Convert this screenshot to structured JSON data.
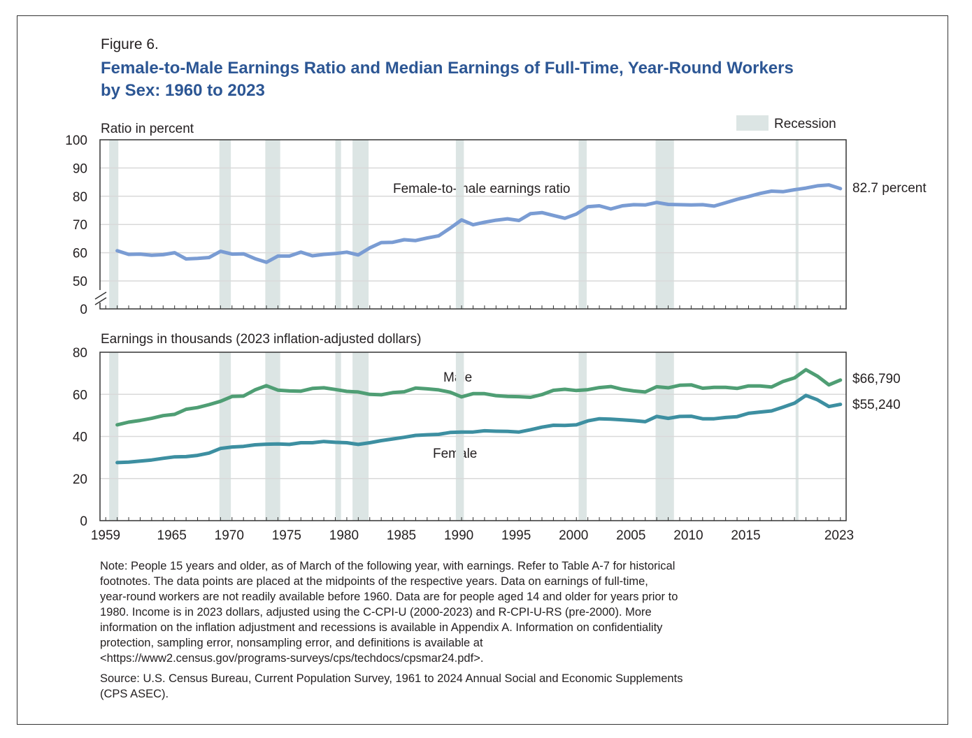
{
  "figure_label": "Figure 6.",
  "title_lines": [
    "Female-to-Male Earnings Ratio and Median Earnings of Full-Time, Year-Round Workers",
    "by Sex: 1960 to 2023"
  ],
  "legend": {
    "recession_label": "Recession",
    "recession_color": "#dce5e4"
  },
  "chart_data": [
    {
      "type": "line",
      "ylabel": "Ratio in percent",
      "yticks": [
        0,
        50,
        60,
        70,
        80,
        90,
        100
      ],
      "ylim": [
        50,
        100
      ],
      "axis_break": true,
      "grid": true,
      "color": "#7a9cd3",
      "series_label": "Female-to-male earnings ratio",
      "end_label": "82.7 percent",
      "x": [
        1960,
        1961,
        1962,
        1963,
        1964,
        1965,
        1966,
        1967,
        1968,
        1969,
        1970,
        1971,
        1972,
        1973,
        1974,
        1975,
        1976,
        1977,
        1978,
        1979,
        1980,
        1981,
        1982,
        1983,
        1984,
        1985,
        1986,
        1987,
        1988,
        1989,
        1990,
        1991,
        1992,
        1993,
        1994,
        1995,
        1996,
        1997,
        1998,
        1999,
        2000,
        2001,
        2002,
        2003,
        2004,
        2005,
        2006,
        2007,
        2008,
        2009,
        2010,
        2011,
        2012,
        2013,
        2014,
        2015,
        2016,
        2017,
        2018,
        2019,
        2020,
        2021,
        2022,
        2023
      ],
      "values": [
        60.7,
        59.4,
        59.5,
        59.1,
        59.3,
        60.0,
        57.8,
        58.0,
        58.3,
        60.5,
        59.5,
        59.6,
        57.9,
        56.6,
        58.8,
        58.8,
        60.2,
        58.9,
        59.4,
        59.7,
        60.2,
        59.2,
        61.7,
        63.6,
        63.7,
        64.6,
        64.3,
        65.2,
        66.0,
        68.7,
        71.6,
        69.9,
        70.8,
        71.5,
        72.0,
        71.4,
        73.8,
        74.2,
        73.2,
        72.2,
        73.7,
        76.3,
        76.6,
        75.5,
        76.6,
        77.0,
        76.9,
        77.8,
        77.1,
        77.0,
        76.9,
        77.0,
        76.5,
        77.7,
        78.9,
        79.9,
        81.0,
        81.8,
        81.6,
        82.3,
        82.9,
        83.7,
        84.0,
        82.7
      ]
    },
    {
      "type": "line",
      "ylabel": "Earnings in thousands (2023 inflation-adjusted dollars)",
      "yticks": [
        0,
        20,
        40,
        60,
        80
      ],
      "ylim": [
        0,
        80
      ],
      "grid": true,
      "xticks": [
        "1959",
        "1965",
        "1970",
        "1975",
        "1980",
        "1985",
        "1990",
        "1995",
        "2000",
        "2005",
        "2010",
        "2015",
        "2023"
      ],
      "xlim": [
        1959,
        2024
      ],
      "x": [
        1960,
        1961,
        1962,
        1963,
        1964,
        1965,
        1966,
        1967,
        1968,
        1969,
        1970,
        1971,
        1972,
        1973,
        1974,
        1975,
        1976,
        1977,
        1978,
        1979,
        1980,
        1981,
        1982,
        1983,
        1984,
        1985,
        1986,
        1987,
        1988,
        1989,
        1990,
        1991,
        1992,
        1993,
        1994,
        1995,
        1996,
        1997,
        1998,
        1999,
        2000,
        2001,
        2002,
        2003,
        2004,
        2005,
        2006,
        2007,
        2008,
        2009,
        2010,
        2011,
        2012,
        2013,
        2014,
        2015,
        2016,
        2017,
        2018,
        2019,
        2020,
        2021,
        2022,
        2023
      ],
      "series": [
        {
          "name": "Male",
          "color": "#4f9e74",
          "end_label": "$66,790",
          "values": [
            45.5,
            46.8,
            47.6,
            48.6,
            49.9,
            50.5,
            52.9,
            53.7,
            55.1,
            56.7,
            59.0,
            59.2,
            62.1,
            64.1,
            62.0,
            61.6,
            61.5,
            62.8,
            63.1,
            62.3,
            61.4,
            61.1,
            60.0,
            59.8,
            60.8,
            61.2,
            63.0,
            62.6,
            62.1,
            61.0,
            58.8,
            60.3,
            60.3,
            59.4,
            59.0,
            58.9,
            58.6,
            59.9,
            61.9,
            62.4,
            61.8,
            62.2,
            63.2,
            63.7,
            62.4,
            61.6,
            61.1,
            63.6,
            63.1,
            64.3,
            64.5,
            62.9,
            63.3,
            63.3,
            62.8,
            64.0,
            64.0,
            63.5,
            66.1,
            67.8,
            71.7,
            68.6,
            64.5,
            66.79
          ]
        },
        {
          "name": "Female",
          "color": "#3d8fa1",
          "end_label": "$55,240",
          "values": [
            27.6,
            27.8,
            28.3,
            28.8,
            29.6,
            30.3,
            30.4,
            31.0,
            32.1,
            34.3,
            35.0,
            35.3,
            36.0,
            36.3,
            36.4,
            36.2,
            37.0,
            37.0,
            37.6,
            37.2,
            37.0,
            36.2,
            37.0,
            38.0,
            38.8,
            39.6,
            40.5,
            40.8,
            41.0,
            41.9,
            42.1,
            42.1,
            42.7,
            42.5,
            42.4,
            42.1,
            43.2,
            44.4,
            45.3,
            45.2,
            45.5,
            47.4,
            48.4,
            48.2,
            47.9,
            47.5,
            47.0,
            49.5,
            48.6,
            49.5,
            49.6,
            48.4,
            48.4,
            49.0,
            49.4,
            51.0,
            51.6,
            52.1,
            53.9,
            55.8,
            59.5,
            57.4,
            54.2,
            55.24
          ]
        }
      ]
    }
  ],
  "recessions": [
    [
      1960.3,
      1961.1
    ],
    [
      1969.9,
      1970.9
    ],
    [
      1973.9,
      1975.2
    ],
    [
      1980.0,
      1980.5
    ],
    [
      1981.5,
      1982.9
    ],
    [
      1990.5,
      1991.2
    ],
    [
      2001.2,
      2001.9
    ],
    [
      2007.9,
      2009.5
    ],
    [
      2020.1,
      2020.35
    ]
  ],
  "notes": [
    "Note: People 15 years and older, as of March of the following year, with earnings. Refer to Table A-7 for historical",
    "footnotes. The data points are placed at the midpoints of the respective years. Data on earnings of full-time,",
    "year-round workers are not readily available before 1960. Data are for people aged 14 and older for years prior to",
    "1980. Income is in 2023 dollars, adjusted using the C-CPI-U (2000-2023) and R-CPI-U-RS (pre-2000). More",
    "information on the inflation adjustment and recessions is available in Appendix A. Information on confidentiality",
    "protection, sampling error, nonsampling error, and definitions is available at",
    "<https://www2.census.gov/programs-surveys/cps/techdocs/cpsmar24.pdf>."
  ],
  "source_lines": [
    "Source: U.S. Census Bureau, Current Population Survey, 1961 to 2024 Annual Social and Economic Supplements",
    "(CPS ASEC)."
  ]
}
